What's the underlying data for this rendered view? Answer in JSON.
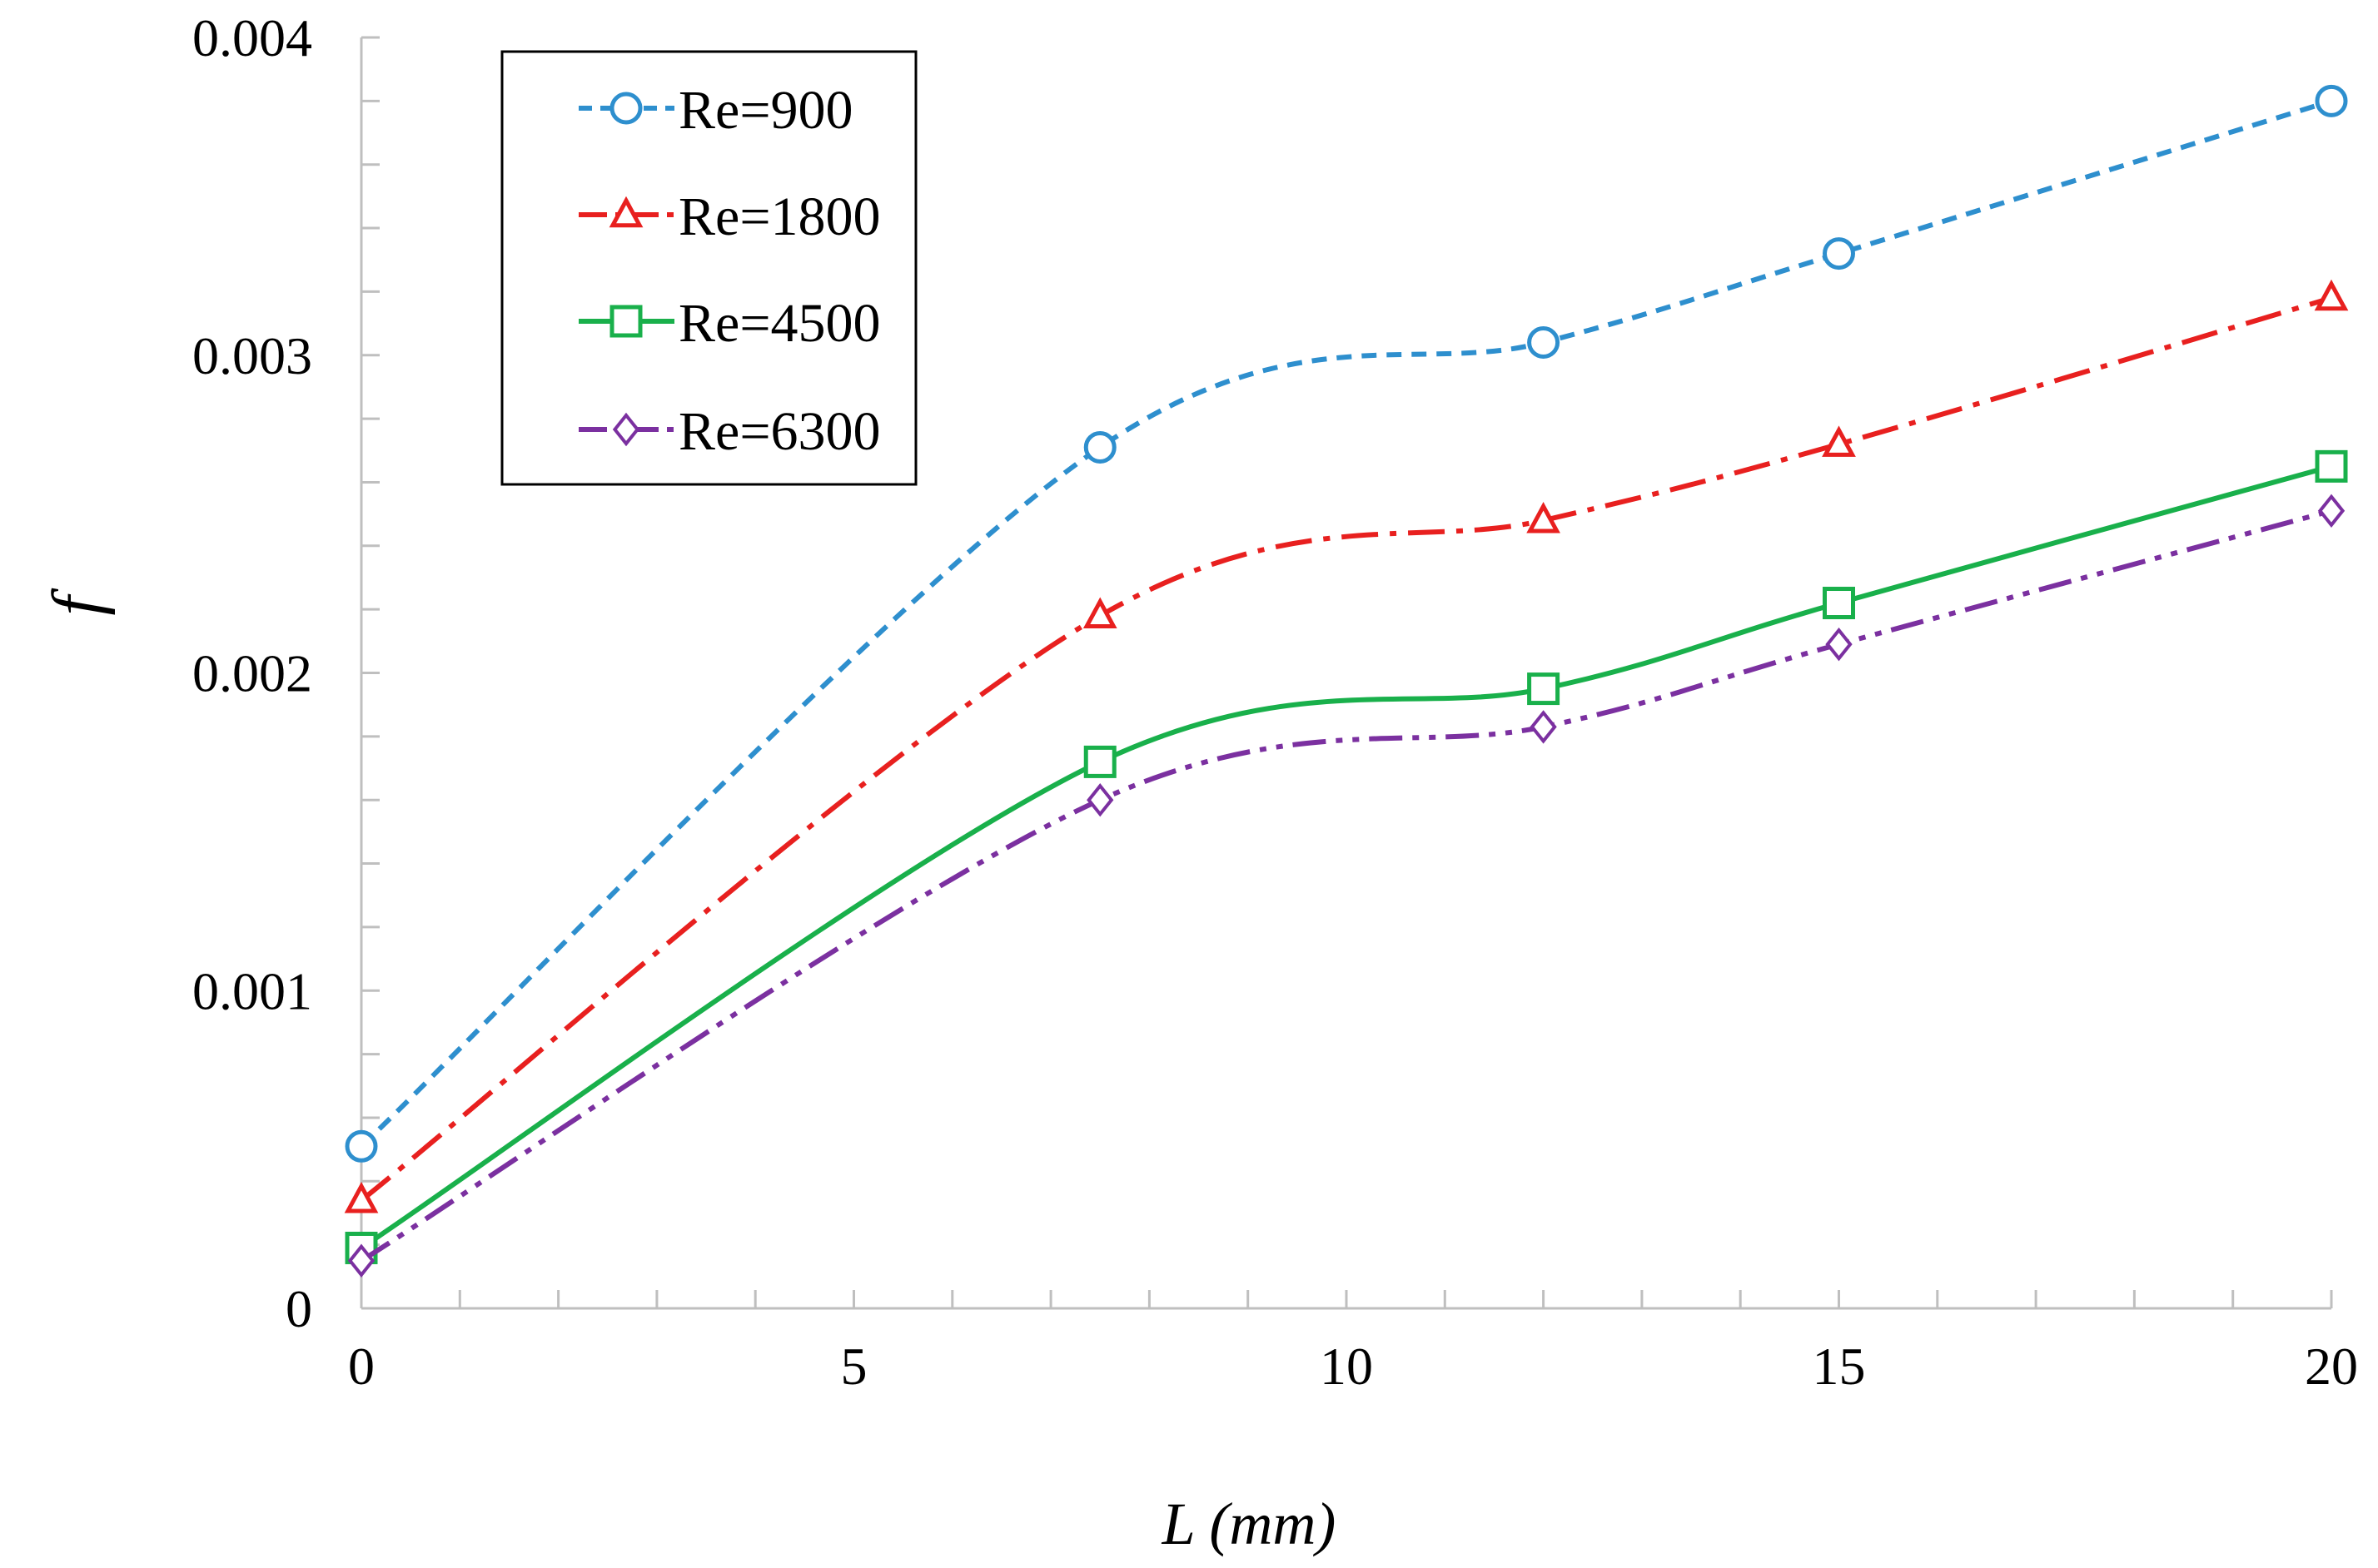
{
  "chart_data": {
    "type": "line",
    "title": "",
    "xlabel": "L (mm)",
    "ylabel": "f",
    "xlim": [
      0,
      20
    ],
    "ylim": [
      0,
      0.004
    ],
    "x_ticks": [
      "0",
      "5",
      "10",
      "15",
      "20"
    ],
    "y_ticks": [
      "0",
      "0.001",
      "0.002",
      "0.003",
      "0.004"
    ],
    "x_minor_step": 1,
    "y_minor_step": 0.0002,
    "grid": false,
    "legend_position": "top-left",
    "x": [
      0,
      7.5,
      12,
      15,
      20
    ],
    "series": [
      {
        "name": "Re=900",
        "color": "#2e8fce",
        "marker": "circle",
        "line_style": "dashed",
        "values": [
          0.00051,
          0.00271,
          0.00304,
          0.00332,
          0.0038
        ]
      },
      {
        "name": "Re=1800",
        "color": "#e8201f",
        "marker": "triangle",
        "line_style": "dash-dot",
        "values": [
          0.00034,
          0.00218,
          0.00248,
          0.00272,
          0.00318
        ]
      },
      {
        "name": "Re=4500",
        "color": "#19b04b",
        "marker": "square",
        "line_style": "solid",
        "values": [
          0.00019,
          0.00172,
          0.00195,
          0.00222,
          0.00265
        ]
      },
      {
        "name": "Re=6300",
        "color": "#7b30a0",
        "marker": "diamond",
        "line_style": "dash-dot-dot",
        "values": [
          0.00015,
          0.0016,
          0.00183,
          0.00209,
          0.00251
        ]
      }
    ]
  }
}
